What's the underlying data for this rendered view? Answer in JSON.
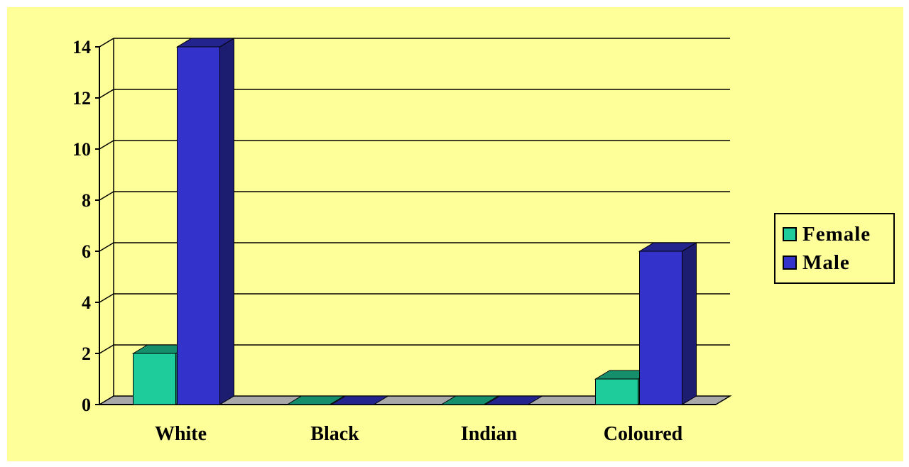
{
  "chart_data": {
    "type": "bar",
    "categories": [
      "White",
      "Black",
      "Indian",
      "Coloured"
    ],
    "series": [
      {
        "name": "Female",
        "values": [
          2,
          0,
          0,
          1
        ],
        "color": "#1ecb9a"
      },
      {
        "name": "Male",
        "values": [
          14,
          0,
          0,
          6
        ],
        "color": "#3333cc"
      }
    ],
    "ylim": [
      0,
      14
    ],
    "yticks": [
      0,
      2,
      4,
      6,
      8,
      10,
      12,
      14
    ],
    "grid": true,
    "legend_position": "right",
    "background": "#ffff99"
  },
  "legend": {
    "female_label": "Female",
    "male_label": "Male",
    "female_color": "#1ecb9a",
    "male_color": "#3333cc"
  }
}
